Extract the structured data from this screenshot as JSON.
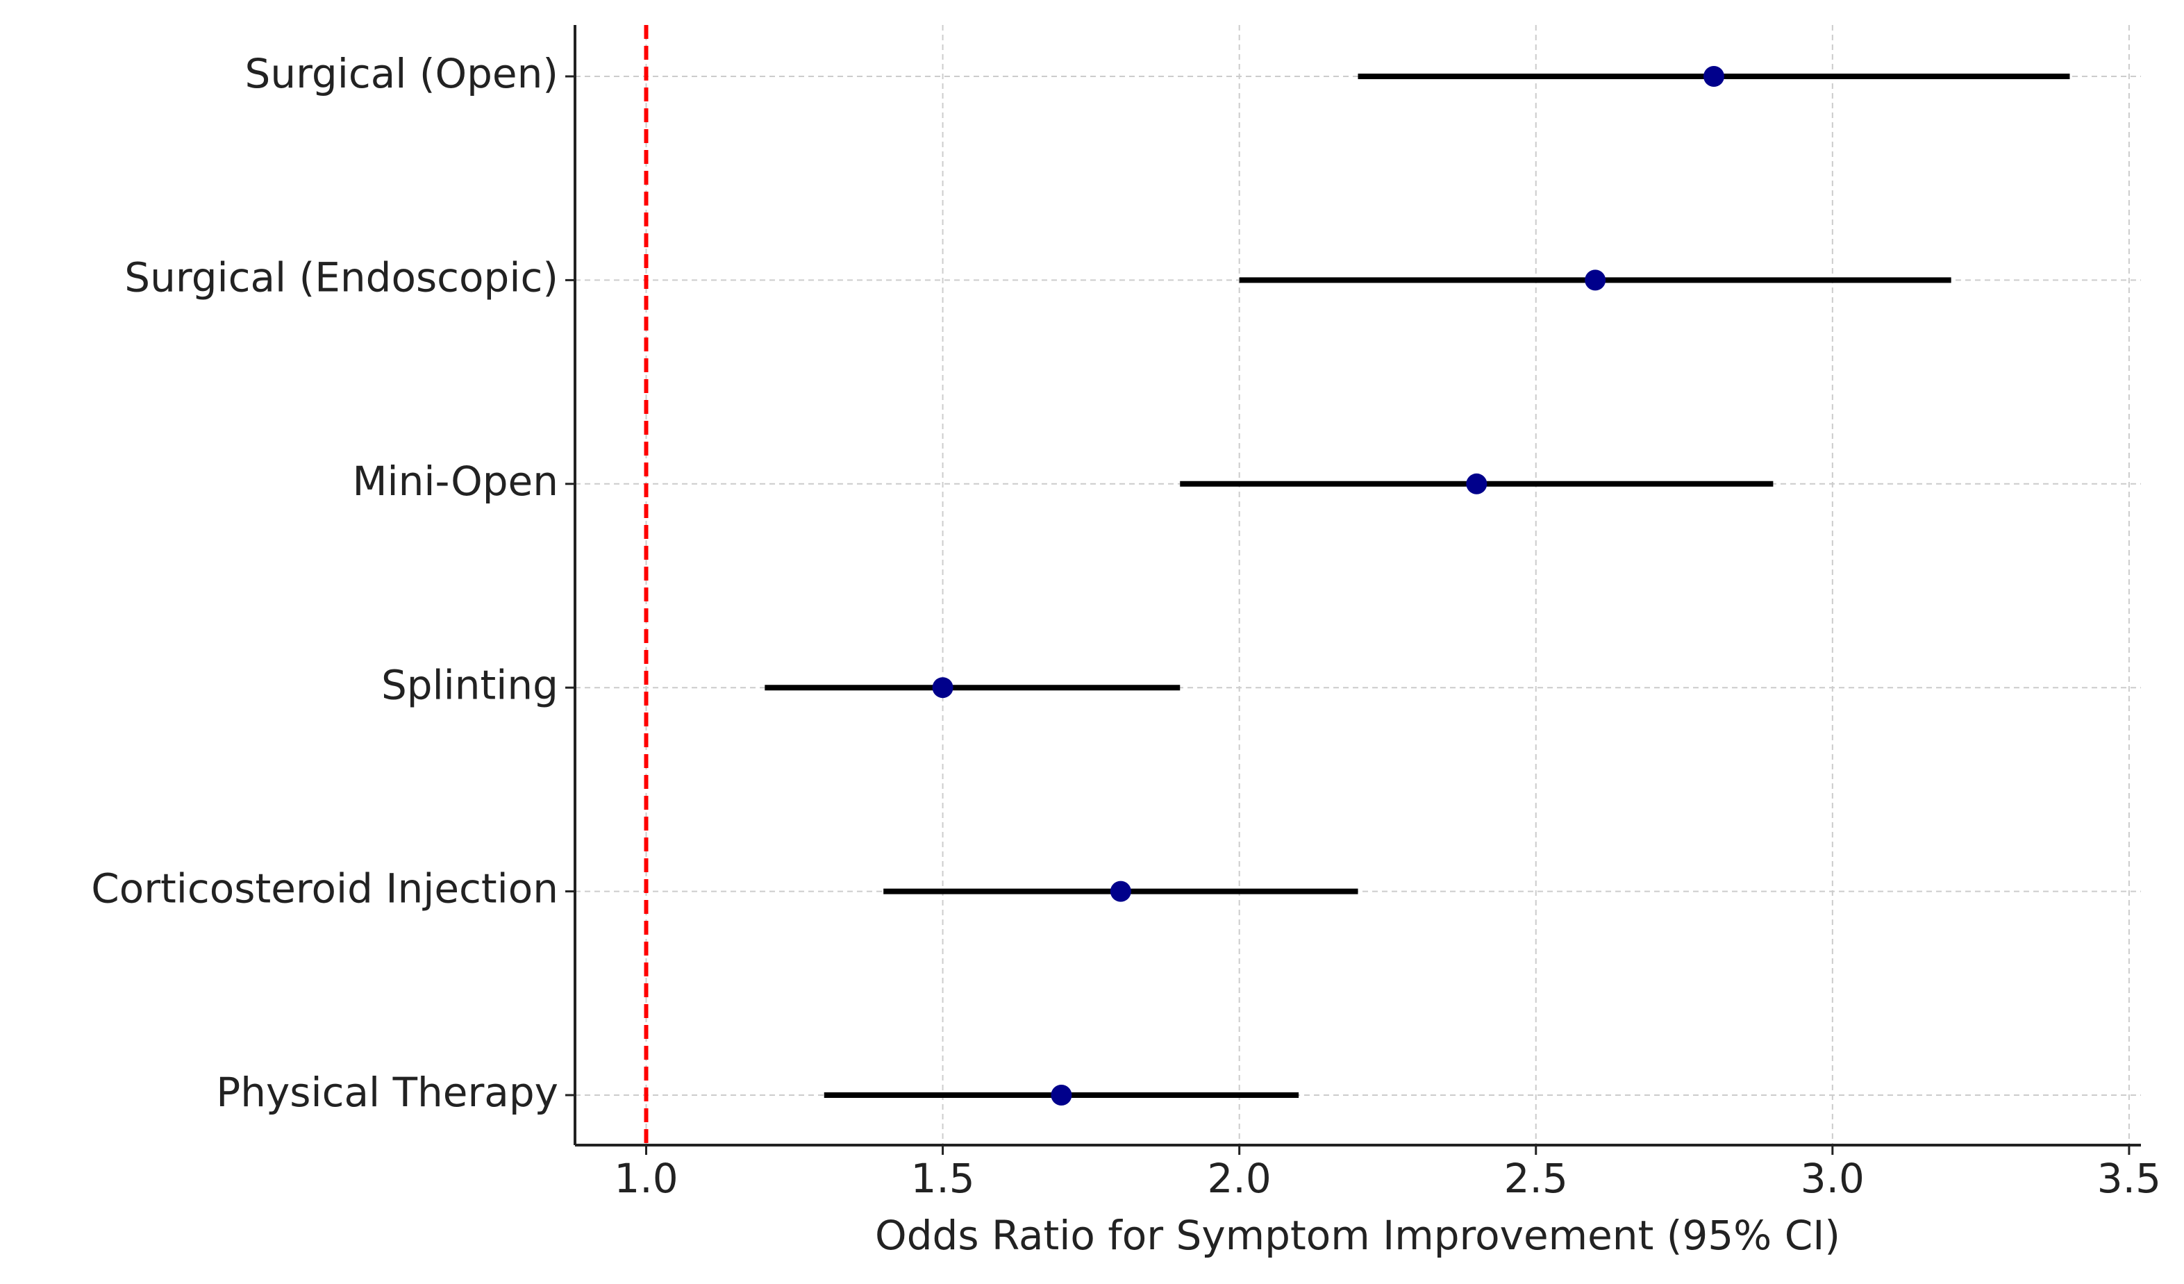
{
  "chart_data": {
    "type": "forest",
    "x_label": "Odds Ratio for Symptom Improvement (95% CI)",
    "categories": [
      "Surgical (Open)",
      "Surgical (Endoscopic)",
      "Mini-Open",
      "Splinting",
      "Corticosteroid Injection",
      "Physical Therapy"
    ],
    "values": [
      2.8,
      2.6,
      2.4,
      1.5,
      1.8,
      1.7
    ],
    "lower": [
      2.2,
      2.0,
      1.9,
      1.2,
      1.4,
      1.3
    ],
    "upper": [
      3.4,
      3.2,
      2.9,
      1.9,
      2.2,
      2.1
    ],
    "color": "#00008b",
    "ci_color": "#000000",
    "xlim": [
      0.88,
      3.52
    ],
    "xticks": [
      {
        "value": 1,
        "label": "1.0"
      },
      {
        "value": 1.5,
        "label": "1.5"
      },
      {
        "value": 2,
        "label": "2.0"
      },
      {
        "value": 2.5,
        "label": "2.5"
      },
      {
        "value": 3,
        "label": "3.0"
      },
      {
        "value": 3.5,
        "label": "3.5"
      }
    ],
    "reference_line": {
      "value": 1,
      "color": "#ff0000"
    },
    "grid": true
  }
}
